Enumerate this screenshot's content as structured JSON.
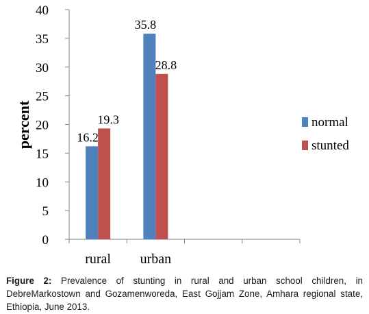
{
  "chart_data": {
    "type": "bar",
    "categories": [
      "rural",
      "urban",
      "",
      ""
    ],
    "series": [
      {
        "name": "normal",
        "values": [
          16.2,
          35.8,
          null,
          null
        ],
        "color": "#4f81bd"
      },
      {
        "name": "stunted",
        "values": [
          19.3,
          28.8,
          null,
          null
        ],
        "color": "#c0504d"
      }
    ],
    "title": "",
    "xlabel": "",
    "ylabel": "percent",
    "ylim": [
      0,
      40
    ],
    "yticks": [
      "0",
      "5",
      "10",
      "15",
      "20",
      "25",
      "30",
      "35",
      "40"
    ],
    "data_labels": [
      [
        "16.2",
        "35.8"
      ],
      [
        "19.3",
        "28.8"
      ]
    ],
    "grid": false,
    "legend_position": "right"
  },
  "caption": {
    "label": "Figure 2:",
    "text": " Prevalence of stunting in rural and urban school children, in DebreMarkostown and Gozamenworeda, East Gojjam Zone, Amhara regional state, Ethiopia, June 2013."
  }
}
